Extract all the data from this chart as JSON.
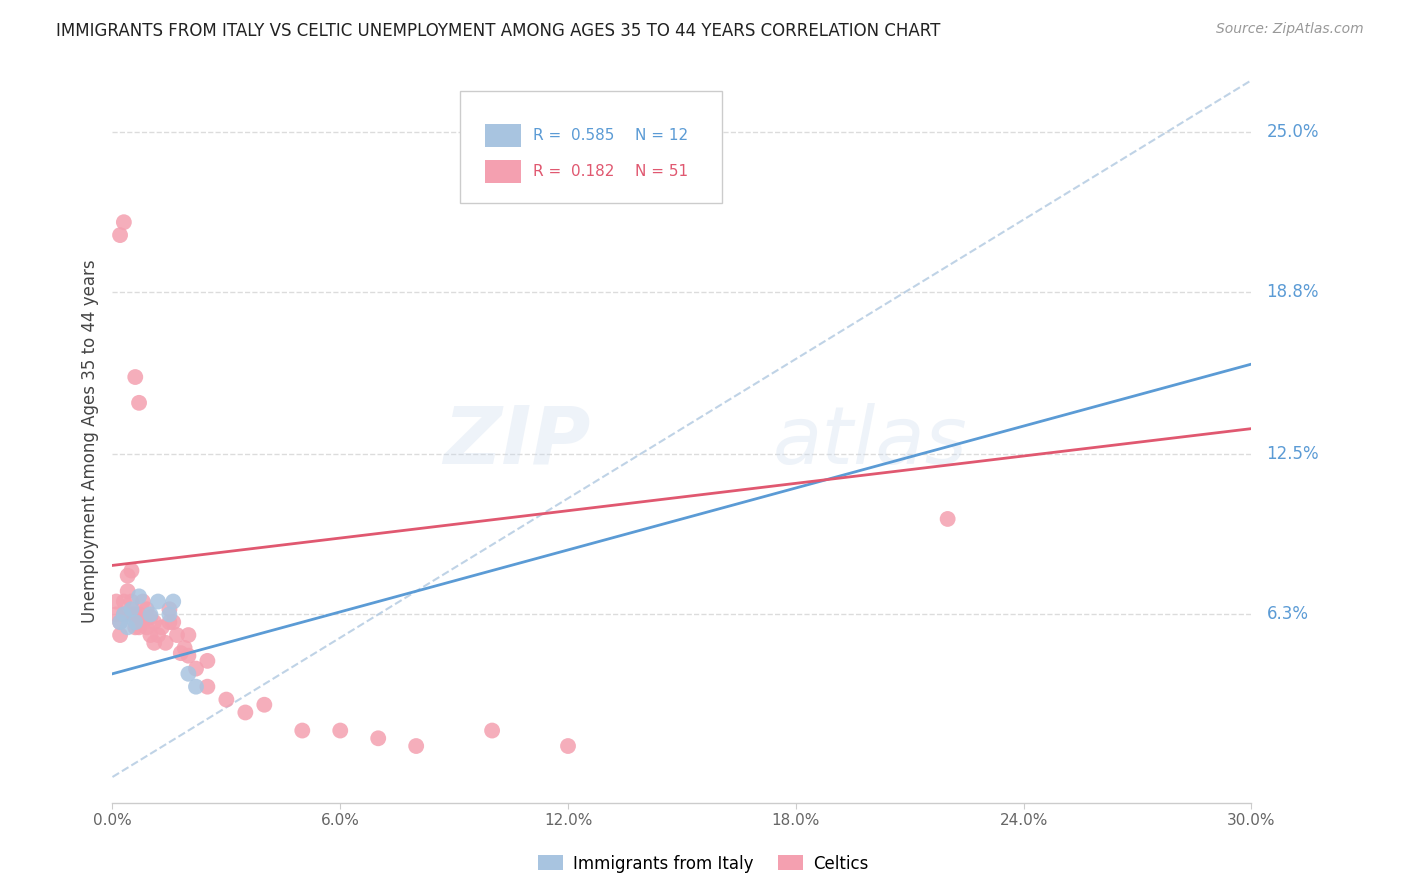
{
  "title": "IMMIGRANTS FROM ITALY VS CELTIC UNEMPLOYMENT AMONG AGES 35 TO 44 YEARS CORRELATION CHART",
  "source": "Source: ZipAtlas.com",
  "ylabel": "Unemployment Among Ages 35 to 44 years",
  "ytick_labels": [
    "25.0%",
    "18.8%",
    "12.5%",
    "6.3%"
  ],
  "ytick_values": [
    0.25,
    0.188,
    0.125,
    0.063
  ],
  "xmin": 0.0,
  "xmax": 0.3,
  "ymin": -0.01,
  "ymax": 0.27,
  "legend_italy_r": "0.585",
  "legend_italy_n": "12",
  "legend_celtics_r": "0.182",
  "legend_celtics_n": "51",
  "color_italy": "#A8C4E0",
  "color_celtics": "#F4A0B0",
  "color_italy_line": "#5B9BD5",
  "color_celtics_line": "#E05870",
  "color_dashed": "#B0C8E0",
  "color_right_labels": "#5B9BD5",
  "italy_points_x": [
    0.002,
    0.003,
    0.004,
    0.005,
    0.006,
    0.007,
    0.01,
    0.012,
    0.015,
    0.016,
    0.02,
    0.022
  ],
  "italy_points_y": [
    0.06,
    0.063,
    0.058,
    0.065,
    0.06,
    0.07,
    0.063,
    0.068,
    0.063,
    0.068,
    0.04,
    0.035
  ],
  "italy_line_x": [
    0.0,
    0.3
  ],
  "italy_line_y": [
    0.04,
    0.16
  ],
  "celtics_line_x": [
    0.0,
    0.3
  ],
  "celtics_line_y": [
    0.082,
    0.135
  ],
  "celtics_points_x": [
    0.001,
    0.001,
    0.002,
    0.002,
    0.002,
    0.003,
    0.003,
    0.003,
    0.004,
    0.004,
    0.005,
    0.005,
    0.005,
    0.006,
    0.006,
    0.006,
    0.007,
    0.007,
    0.007,
    0.008,
    0.008,
    0.009,
    0.009,
    0.01,
    0.01,
    0.011,
    0.011,
    0.012,
    0.013,
    0.014,
    0.015,
    0.015,
    0.016,
    0.017,
    0.018,
    0.019,
    0.02,
    0.02,
    0.022,
    0.025,
    0.025,
    0.03,
    0.035,
    0.04,
    0.05,
    0.06,
    0.07,
    0.08,
    0.1,
    0.12,
    0.22
  ],
  "celtics_points_y": [
    0.063,
    0.068,
    0.055,
    0.06,
    0.21,
    0.063,
    0.068,
    0.215,
    0.072,
    0.078,
    0.063,
    0.068,
    0.08,
    0.058,
    0.063,
    0.155,
    0.058,
    0.063,
    0.145,
    0.06,
    0.068,
    0.058,
    0.065,
    0.055,
    0.062,
    0.052,
    0.06,
    0.055,
    0.058,
    0.052,
    0.06,
    0.065,
    0.06,
    0.055,
    0.048,
    0.05,
    0.055,
    0.047,
    0.042,
    0.035,
    0.045,
    0.03,
    0.025,
    0.028,
    0.018,
    0.018,
    0.015,
    0.012,
    0.018,
    0.012,
    0.1
  ],
  "dashed_line_x": [
    0.0,
    0.3
  ],
  "dashed_line_y": [
    0.0,
    0.27
  ],
  "bg_color": "#FFFFFF",
  "grid_color": "#DCDCDC"
}
